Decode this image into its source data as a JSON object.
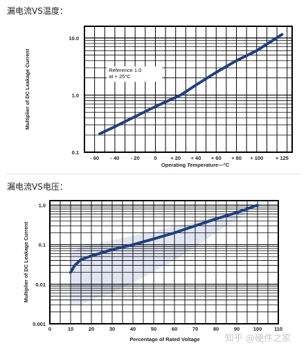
{
  "headings": {
    "temp": "漏电流VS温度：",
    "voltage": "漏电流VS电压："
  },
  "watermark": "知乎 @硬件之家",
  "colors": {
    "curve": "#1f3f7f",
    "band": "#c9cfe8",
    "grid": "#000000"
  },
  "chart_data": [
    {
      "type": "line",
      "yscale": "log",
      "xlabel": "Operating Temperature—°C",
      "ylabel": "Multiplier of DC Leakage Current",
      "x_ticks": [
        -60,
        -40,
        -20,
        0,
        20,
        40,
        60,
        80,
        100,
        125
      ],
      "x_tick_labels": [
        "- 60",
        "- 40",
        "- 20",
        "0",
        "+ 20",
        "+ 40",
        "+ 60",
        "+ 80",
        "+ 100",
        "+ 125"
      ],
      "y_ticks": [
        0.1,
        1.0,
        10.0
      ],
      "y_tick_labels": [
        "0.1",
        "1.0",
        "10.0"
      ],
      "xlim": [
        -70,
        135
      ],
      "ylim": [
        0.1,
        16
      ],
      "annotation": [
        "Reference 1.0",
        "at + 25°C"
      ],
      "series": [
        {
          "x": [
            -55,
            -40,
            -20,
            0,
            25,
            40,
            60,
            80,
            100,
            125
          ],
          "y": [
            0.21,
            0.28,
            0.42,
            0.63,
            1.0,
            1.5,
            2.5,
            4.0,
            6.0,
            11.5
          ]
        }
      ]
    },
    {
      "type": "line",
      "yscale": "log",
      "xlabel": "Percentage of Rated Voltage",
      "ylabel": "Multiplier of DC Leakage Current",
      "x_ticks": [
        0,
        10,
        20,
        30,
        40,
        50,
        60,
        70,
        80,
        90,
        100,
        110
      ],
      "x_tick_labels": [
        "0",
        "10",
        "20",
        "30",
        "40",
        "50",
        "60",
        "70",
        "80",
        "90",
        "100",
        "110"
      ],
      "y_ticks": [
        0.001,
        0.01,
        0.1,
        1.0
      ],
      "y_tick_labels": [
        "0.001",
        "0.01",
        "0.1",
        "1.0"
      ],
      "xlim": [
        0,
        110
      ],
      "ylim": [
        0.001,
        1.3
      ],
      "series": [
        {
          "x": [
            10,
            12,
            15,
            20,
            30,
            40,
            50,
            60,
            70,
            80,
            90,
            100
          ],
          "y": [
            0.02,
            0.03,
            0.042,
            0.052,
            0.075,
            0.1,
            0.14,
            0.2,
            0.3,
            0.45,
            0.65,
            1.0
          ]
        }
      ],
      "band": {
        "x": [
          10,
          15,
          20,
          30,
          40,
          60,
          80,
          100
        ],
        "upper": [
          0.06,
          0.09,
          0.1,
          0.13,
          0.17,
          0.29,
          0.5,
          1.0
        ],
        "lower": [
          0.003,
          0.003,
          0.004,
          0.006,
          0.011,
          0.04,
          0.2,
          1.0
        ]
      }
    }
  ]
}
